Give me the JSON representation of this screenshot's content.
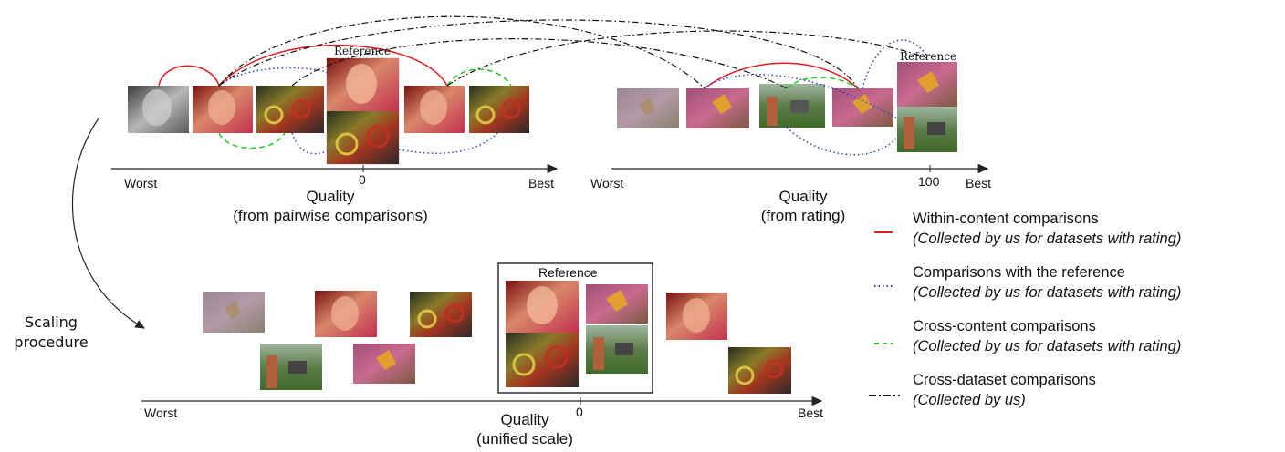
{
  "top_left_axis": {
    "worst": "Worst",
    "best": "Best",
    "zero_tick": "0",
    "caption_line1": "Quality",
    "caption_line2": "(from pairwise comparisons)",
    "reference_label": "Reference"
  },
  "top_right_axis": {
    "worst": "Worst",
    "best": "Best",
    "hundred_tick": "100",
    "caption_line1": "Quality",
    "caption_line2": "(from rating)",
    "reference_label": "Reference"
  },
  "bottom_axis": {
    "worst": "Worst",
    "best": "Best",
    "zero_tick": "0",
    "caption_line1": "Quality",
    "caption_line2": "(unified scale)",
    "reference_label": "Reference"
  },
  "scaling_label_line1": "Scaling",
  "scaling_label_line2": "procedure",
  "legend": [
    {
      "title": "Within-content comparisons",
      "note": "(Collected by us for datasets with rating)",
      "color": "#e31a1c",
      "style": "solid"
    },
    {
      "title": "Comparisons with the reference",
      "note": "(Collected by us for datasets with rating)",
      "color": "#2b3fd6",
      "style": "dotted"
    },
    {
      "title": "Cross-content comparisons",
      "note": "(Collected by us for datasets with rating)",
      "color": "#22cc22",
      "style": "dashed"
    },
    {
      "title": "Cross-dataset comparisons",
      "note": "(Collected by us)",
      "color": "#111111",
      "style": "dashdot"
    }
  ],
  "image_kinds": {
    "woman_gray": "grayscale portrait thumbnail",
    "woman": "woman portrait thumbnail",
    "bikes": "motorbikes thumbnail",
    "butterfly": "butterfly on flowers thumbnail",
    "garden": "garden with brick pillar thumbnail"
  }
}
